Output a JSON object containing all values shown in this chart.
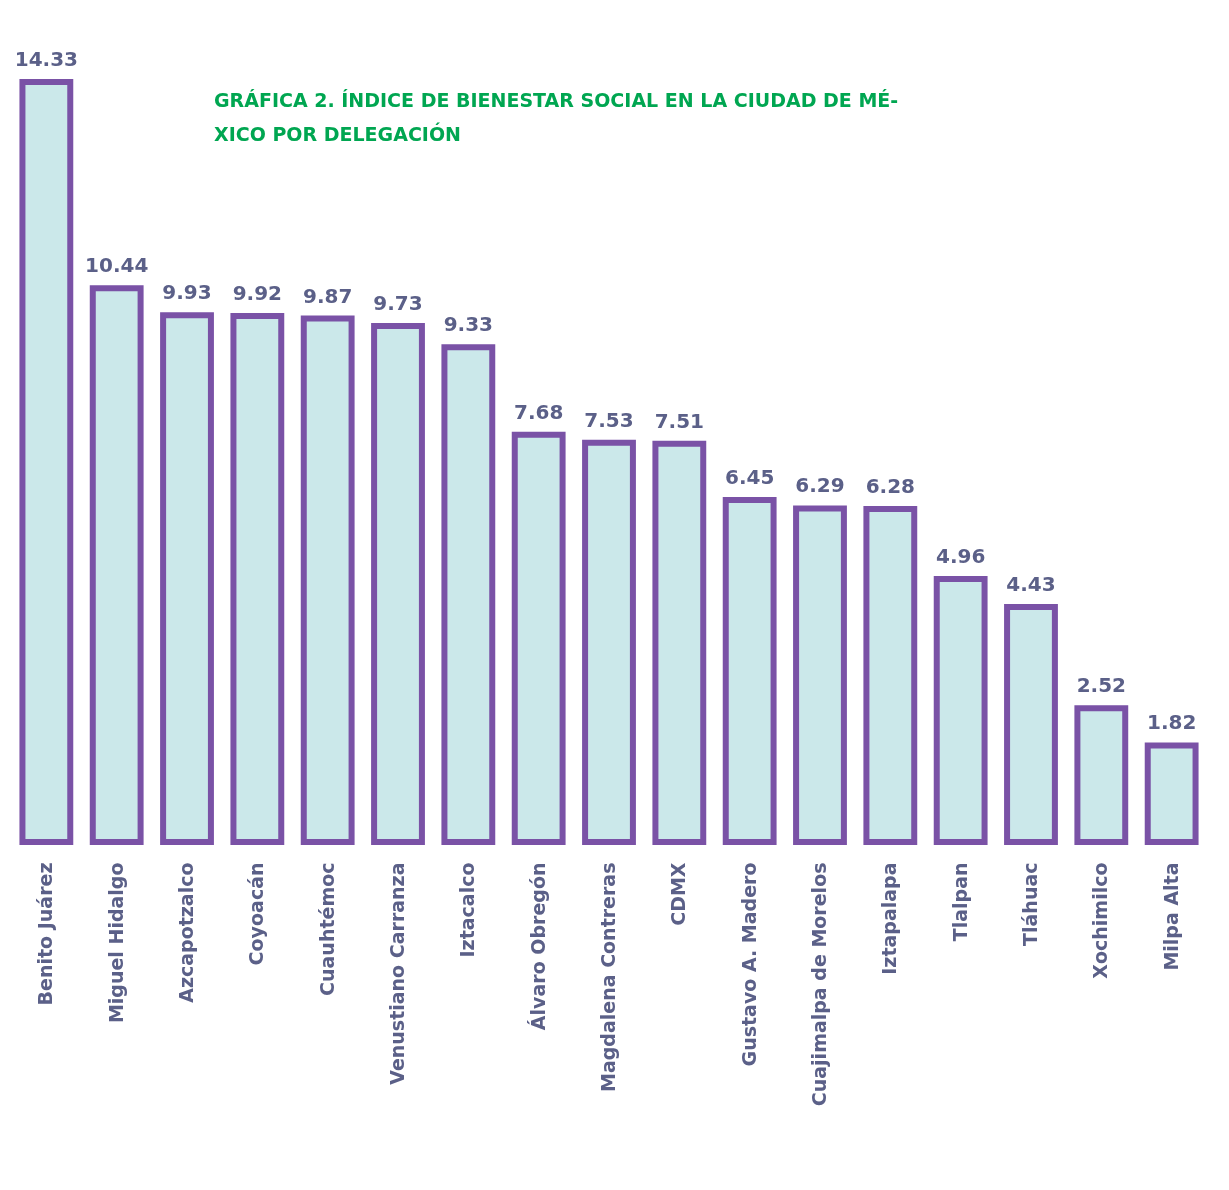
{
  "chart_data": {
    "type": "bar",
    "title": "GRÁFICA 2. ÍNDICE DE BIENESTAR SOCIAL EN LA CIUDAD DE MÉ-\nXICO POR DELEGACIÓN",
    "categories": [
      "Benito Juárez",
      "Miguel Hidalgo",
      "Azcapotzalco",
      "Coyoacán",
      "Cuauhtémoc",
      "Venustiano Carranza",
      "Iztacalco",
      "Álvaro Obregón",
      "Magdalena Contreras",
      "CDMX",
      "Gustavo A. Madero",
      "Cuajimalpa de Morelos",
      "Iztapalapa",
      "Tlalpan",
      "Tláhuac",
      "Xochimilco",
      "Milpa Alta"
    ],
    "values": [
      14.33,
      10.44,
      9.93,
      9.92,
      9.87,
      9.73,
      9.33,
      7.68,
      7.53,
      7.51,
      6.45,
      6.29,
      6.28,
      4.96,
      4.43,
      2.52,
      1.82
    ],
    "color": "#cbe8ea",
    "data_labels": true,
    "grid": false
  }
}
